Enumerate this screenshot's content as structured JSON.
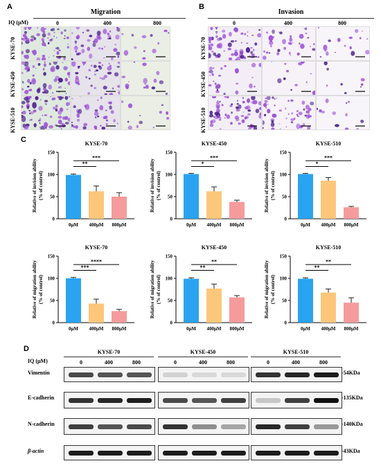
{
  "panelA": {
    "letter": "A",
    "title": "Migration",
    "iq_label": "IQ (µM)",
    "columns": [
      "0",
      "400",
      "800"
    ],
    "rows": [
      "KYSE-70",
      "KYSE-450",
      "KYSE-510"
    ]
  },
  "panelB": {
    "letter": "B",
    "title": "Invasion",
    "columns": [
      "0",
      "400",
      "800"
    ],
    "rows": [
      "KYSE-70",
      "KYSE-450",
      "KYSE-510"
    ]
  },
  "panelC": {
    "letter": "C"
  },
  "chart_data": [
    {
      "type": "bar",
      "title": "KYSE-70",
      "ylabel": "Relative of invision ability (% of control)",
      "categories": [
        "0μM",
        "400μM",
        "800μM"
      ],
      "values": [
        99,
        62,
        50
      ],
      "errors": [
        2,
        12,
        9
      ],
      "ylim": [
        0,
        150
      ],
      "yticks": [
        "0",
        "50",
        "100",
        "150"
      ],
      "sig": [
        "**",
        "***"
      ],
      "colors": [
        "#2aa3f0",
        "#fcc77a",
        "#f59b9b"
      ]
    },
    {
      "type": "bar",
      "title": "KYSE-450",
      "ylabel": "Relative of invision ability (% of control)",
      "categories": [
        "0μM",
        "400μM",
        "800μM"
      ],
      "values": [
        101,
        62,
        38
      ],
      "errors": [
        1.5,
        10,
        4
      ],
      "ylim": [
        0,
        150
      ],
      "yticks": [
        "0",
        "50",
        "100",
        "150"
      ],
      "sig": [
        "*",
        "***"
      ],
      "colors": [
        "#2aa3f0",
        "#fcc77a",
        "#f59b9b"
      ]
    },
    {
      "type": "bar",
      "title": "KYSE-510",
      "ylabel": "Relative of invision ability (% of control)",
      "categories": [
        "0μM",
        "400μM",
        "800μM"
      ],
      "values": [
        101,
        86,
        26
      ],
      "errors": [
        1.5,
        7,
        2
      ],
      "ylim": [
        0,
        150
      ],
      "yticks": [
        "0",
        "50",
        "100",
        "150"
      ],
      "sig": [
        "*",
        "***"
      ],
      "colors": [
        "#2aa3f0",
        "#fcc77a",
        "#f59b9b"
      ]
    },
    {
      "type": "bar",
      "title": "KYSE-70",
      "ylabel": "Relative of migration ability (% of control)",
      "categories": [
        "0μM",
        "400μM",
        "800μM"
      ],
      "values": [
        100,
        43,
        26
      ],
      "errors": [
        2,
        10,
        4
      ],
      "ylim": [
        0,
        150
      ],
      "yticks": [
        "0",
        "50",
        "100",
        "150"
      ],
      "sig": [
        "***",
        "****"
      ],
      "colors": [
        "#2aa3f0",
        "#fcc77a",
        "#f59b9b"
      ]
    },
    {
      "type": "bar",
      "title": "KYSE-450",
      "ylabel": "Relative of migration ability (% of control)",
      "categories": [
        "0μM",
        "400μM",
        "800μM"
      ],
      "values": [
        99,
        77,
        57
      ],
      "errors": [
        2,
        10,
        4
      ],
      "ylim": [
        0,
        150
      ],
      "yticks": [
        "0",
        "50",
        "100",
        "150"
      ],
      "sig": [
        "**",
        "**"
      ],
      "colors": [
        "#2aa3f0",
        "#fcc77a",
        "#f59b9b"
      ]
    },
    {
      "type": "bar",
      "title": "KYSE-510",
      "ylabel": "Relative of migration ability (% of control)",
      "categories": [
        "0μM",
        "400μM",
        "800μM"
      ],
      "values": [
        99,
        68,
        45
      ],
      "errors": [
        2,
        8,
        11
      ],
      "ylim": [
        0,
        150
      ],
      "yticks": [
        "0",
        "50",
        "100",
        "150"
      ],
      "sig": [
        "**",
        "**"
      ],
      "colors": [
        "#2aa3f0",
        "#fcc77a",
        "#f59b9b"
      ]
    }
  ],
  "panelD": {
    "letter": "D",
    "iq_label": "IQ (μM)",
    "groups": [
      {
        "title": "KYSE-70",
        "lanes": [
          "0",
          "400",
          "800"
        ]
      },
      {
        "title": "KYSE-450",
        "lanes": [
          "0",
          "400",
          "800"
        ]
      },
      {
        "title": "KYSE-510",
        "lanes": [
          "0",
          "400",
          "800"
        ]
      }
    ],
    "proteins": [
      "Vimentin",
      "E-cadherin",
      "N-cadherin",
      "β-actin"
    ],
    "kda": [
      "-54KDa",
      "-135KDa",
      "-140KDa",
      "-43KDa"
    ],
    "band_intensity": [
      [
        [
          0.75,
          0.7,
          0.7
        ],
        [
          0.15,
          0.12,
          0.12
        ],
        [
          0.85,
          0.9,
          0.95
        ]
      ],
      [
        [
          0.85,
          0.9,
          0.95
        ],
        [
          0.75,
          0.7,
          0.8
        ],
        [
          0.2,
          0.8,
          1.0
        ]
      ],
      [
        [
          0.8,
          0.7,
          0.75
        ],
        [
          0.85,
          0.45,
          0.35
        ],
        [
          0.9,
          0.8,
          0.4
        ]
      ],
      [
        [
          0.95,
          0.95,
          0.95
        ],
        [
          0.95,
          0.95,
          0.95
        ],
        [
          0.95,
          0.95,
          0.95
        ]
      ]
    ],
    "colors": {
      "band": "#111111"
    }
  }
}
